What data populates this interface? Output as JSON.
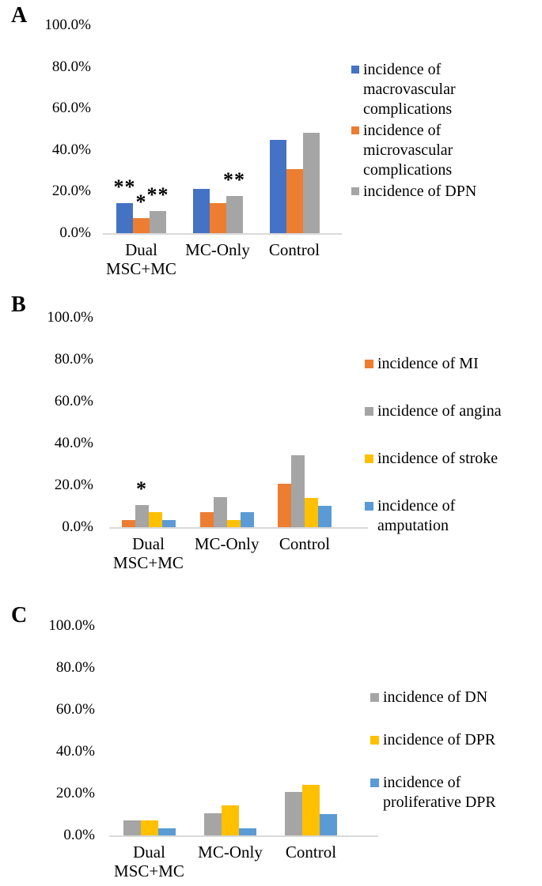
{
  "figure": {
    "panels": [
      {
        "letter": "A"
      },
      {
        "letter": "B"
      },
      {
        "letter": "C"
      }
    ]
  },
  "colors": {
    "blue_dark": "#4472C4",
    "orange": "#ED7D31",
    "gray": "#A5A5A5",
    "yellow": "#FFC000",
    "blue_light": "#5B9BD5",
    "axis_line": "#D9D9D9",
    "text": "#000000"
  },
  "chart_data": [
    {
      "panel": "A",
      "type": "bar",
      "title": "",
      "xlabel": "",
      "ylabel": "",
      "ylim": [
        0,
        100
      ],
      "grid": false,
      "legend_position": "right",
      "yticks": [
        "100.0%",
        "80.0%",
        "60.0%",
        "40.0%",
        "20.0%",
        "0.0%"
      ],
      "categories": [
        "Dual\nMSC+MC",
        "MC-Only",
        "Control"
      ],
      "series": [
        {
          "name": "incidence of macrovascular complications",
          "color": "#4472C4",
          "values": [
            14.3,
            21.4,
            44.8
          ]
        },
        {
          "name": "incidence of microvascular complications",
          "color": "#ED7D31",
          "values": [
            7.1,
            14.3,
            31.0
          ]
        },
        {
          "name": "incidence of DPN",
          "color": "#A5A5A5",
          "values": [
            10.7,
            17.9,
            48.3
          ]
        }
      ],
      "annotations": [
        [
          "**",
          "*",
          "**"
        ],
        [
          "",
          "",
          "**"
        ],
        [
          "",
          "",
          ""
        ]
      ],
      "legend": [
        {
          "label": "incidence of\nmacrovascular\ncomplications",
          "color": "#4472C4"
        },
        {
          "label": "incidence of\nmicrovascular\ncomplications",
          "color": "#ED7D31"
        },
        {
          "label": "incidence of DPN",
          "color": "#A5A5A5"
        }
      ]
    },
    {
      "panel": "B",
      "type": "bar",
      "title": "",
      "xlabel": "",
      "ylabel": "",
      "ylim": [
        0,
        100
      ],
      "grid": false,
      "legend_position": "right",
      "yticks": [
        "100.0%",
        "80.0%",
        "60.0%",
        "40.0%",
        "20.0%",
        "0.0%"
      ],
      "categories": [
        "Dual\nMSC+MC",
        "MC-Only",
        "Control"
      ],
      "series": [
        {
          "name": "incidence of MI",
          "color": "#ED7D31",
          "values": [
            3.6,
            7.1,
            20.7
          ]
        },
        {
          "name": "incidence of angina",
          "color": "#A5A5A5",
          "values": [
            10.7,
            14.3,
            34.5
          ]
        },
        {
          "name": "incidence of stroke",
          "color": "#FFC000",
          "values": [
            7.1,
            3.6,
            13.8
          ]
        },
        {
          "name": "incidence of amputation",
          "color": "#5B9BD5",
          "values": [
            3.6,
            7.1,
            10.3
          ]
        }
      ],
      "annotations": [
        [
          "",
          "*",
          "",
          ""
        ],
        [
          "",
          "",
          "",
          ""
        ],
        [
          "",
          "",
          "",
          ""
        ]
      ],
      "legend": [
        {
          "label": "incidence of MI",
          "color": "#ED7D31"
        },
        {
          "label": "incidence of angina",
          "color": "#A5A5A5"
        },
        {
          "label": "incidence of stroke",
          "color": "#FFC000"
        },
        {
          "label": "incidence of\namputation",
          "color": "#5B9BD5"
        }
      ]
    },
    {
      "panel": "C",
      "type": "bar",
      "title": "",
      "xlabel": "",
      "ylabel": "",
      "ylim": [
        0,
        100
      ],
      "grid": false,
      "legend_position": "right",
      "yticks": [
        "100.0%",
        "80.0%",
        "60.0%",
        "40.0%",
        "20.0%",
        "0.0%"
      ],
      "categories": [
        "Dual\nMSC+MC",
        "MC-Only",
        "Control"
      ],
      "series": [
        {
          "name": "incidence of DN",
          "color": "#A5A5A5",
          "values": [
            7.1,
            10.7,
            20.7
          ]
        },
        {
          "name": "incidence of DPR",
          "color": "#FFC000",
          "values": [
            7.1,
            14.3,
            24.1
          ]
        },
        {
          "name": "incidence of proliferative DPR",
          "color": "#5B9BD5",
          "values": [
            3.6,
            3.6,
            10.3
          ]
        }
      ],
      "annotations": [
        [
          "",
          "",
          ""
        ],
        [
          "",
          "",
          ""
        ],
        [
          "",
          "",
          ""
        ]
      ],
      "legend": [
        {
          "label": "incidence of DN",
          "color": "#A5A5A5"
        },
        {
          "label": "incidence of DPR",
          "color": "#FFC000"
        },
        {
          "label": "incidence of\nproliferative DPR",
          "color": "#5B9BD5"
        }
      ]
    }
  ]
}
